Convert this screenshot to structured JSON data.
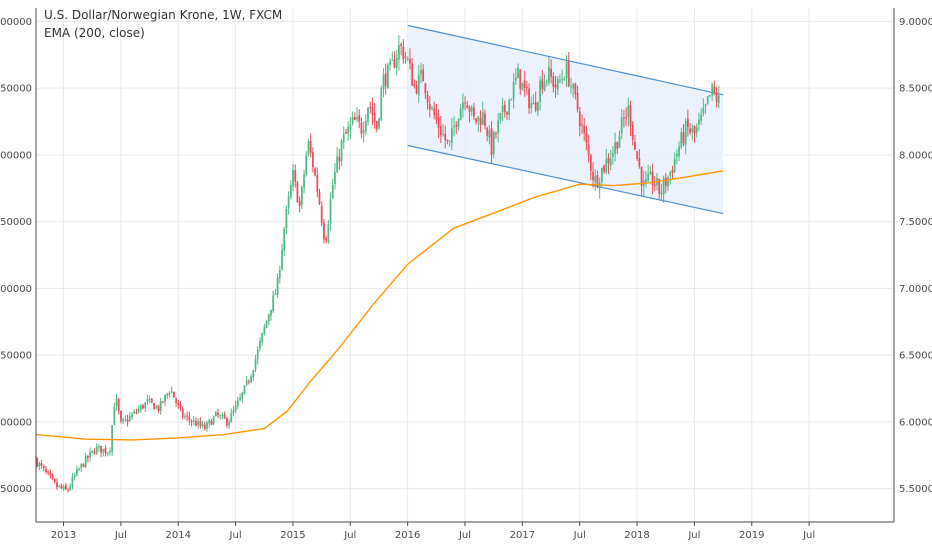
{
  "chart_data": {
    "type": "candlestick",
    "title": "U.S. Dollar/Norwegian Krone, 1W, FXCM",
    "indicator": "EMA (200, close)",
    "ylim": [
      5.25,
      9.1
    ],
    "y_ticks": [
      "9.00000",
      "8.50000",
      "8.00000",
      "7.50000",
      "7.00000",
      "6.50000",
      "6.00000",
      "5.50000"
    ],
    "y_tick_values": [
      9.0,
      8.5,
      8.0,
      7.5,
      7.0,
      6.5,
      6.0,
      5.5
    ],
    "x_ticks": [
      {
        "label": "2013",
        "t": 2013.0
      },
      {
        "label": "Jul",
        "t": 2013.5
      },
      {
        "label": "2014",
        "t": 2014.0
      },
      {
        "label": "Jul",
        "t": 2014.5
      },
      {
        "label": "2015",
        "t": 2015.0
      },
      {
        "label": "Jul",
        "t": 2015.5
      },
      {
        "label": "2016",
        "t": 2016.0
      },
      {
        "label": "Jul",
        "t": 2016.5
      },
      {
        "label": "2017",
        "t": 2017.0
      },
      {
        "label": "Jul",
        "t": 2017.5
      },
      {
        "label": "2018",
        "t": 2018.0
      },
      {
        "label": "Jul",
        "t": 2018.5
      },
      {
        "label": "2019",
        "t": 2019.0
      },
      {
        "label": "Jul",
        "t": 2019.5
      }
    ],
    "xlim": [
      2012.76,
      2020.24
    ],
    "price_path": [
      [
        2012.77,
        5.72
      ],
      [
        2012.85,
        5.63
      ],
      [
        2012.95,
        5.52
      ],
      [
        2013.05,
        5.48
      ],
      [
        2013.12,
        5.6
      ],
      [
        2013.2,
        5.7
      ],
      [
        2013.3,
        5.8
      ],
      [
        2013.42,
        5.78
      ],
      [
        2013.47,
        6.2
      ],
      [
        2013.52,
        5.98
      ],
      [
        2013.62,
        6.05
      ],
      [
        2013.75,
        6.15
      ],
      [
        2013.85,
        6.1
      ],
      [
        2013.95,
        6.25
      ],
      [
        2014.05,
        6.05
      ],
      [
        2014.15,
        6.0
      ],
      [
        2014.25,
        5.95
      ],
      [
        2014.35,
        6.05
      ],
      [
        2014.45,
        6.0
      ],
      [
        2014.55,
        6.15
      ],
      [
        2014.65,
        6.35
      ],
      [
        2014.72,
        6.55
      ],
      [
        2014.82,
        6.85
      ],
      [
        2014.88,
        7.0
      ],
      [
        2014.95,
        7.5
      ],
      [
        2015.02,
        7.85
      ],
      [
        2015.08,
        7.6
      ],
      [
        2015.15,
        8.1
      ],
      [
        2015.2,
        7.9
      ],
      [
        2015.25,
        7.65
      ],
      [
        2015.3,
        7.35
      ],
      [
        2015.37,
        7.8
      ],
      [
        2015.45,
        8.1
      ],
      [
        2015.55,
        8.25
      ],
      [
        2015.62,
        8.2
      ],
      [
        2015.68,
        8.4
      ],
      [
        2015.75,
        8.2
      ],
      [
        2015.8,
        8.55
      ],
      [
        2015.88,
        8.65
      ],
      [
        2015.95,
        8.82
      ],
      [
        2016.02,
        8.7
      ],
      [
        2016.08,
        8.5
      ],
      [
        2016.15,
        8.6
      ],
      [
        2016.22,
        8.35
      ],
      [
        2016.3,
        8.2
      ],
      [
        2016.38,
        8.05
      ],
      [
        2016.45,
        8.3
      ],
      [
        2016.52,
        8.45
      ],
      [
        2016.6,
        8.25
      ],
      [
        2016.68,
        8.3
      ],
      [
        2016.75,
        8.05
      ],
      [
        2016.82,
        8.25
      ],
      [
        2016.9,
        8.4
      ],
      [
        2016.98,
        8.6
      ],
      [
        2017.05,
        8.45
      ],
      [
        2017.12,
        8.35
      ],
      [
        2017.18,
        8.55
      ],
      [
        2017.25,
        8.6
      ],
      [
        2017.32,
        8.5
      ],
      [
        2017.4,
        8.65
      ],
      [
        2017.5,
        8.35
      ],
      [
        2017.58,
        8.05
      ],
      [
        2017.65,
        7.8
      ],
      [
        2017.72,
        7.9
      ],
      [
        2017.82,
        8.05
      ],
      [
        2017.9,
        8.25
      ],
      [
        2017.95,
        8.35
      ],
      [
        2018.0,
        8.05
      ],
      [
        2018.08,
        7.75
      ],
      [
        2018.15,
        7.82
      ],
      [
        2018.22,
        7.72
      ],
      [
        2018.3,
        7.85
      ],
      [
        2018.38,
        8.05
      ],
      [
        2018.45,
        8.2
      ],
      [
        2018.52,
        8.15
      ],
      [
        2018.6,
        8.3
      ],
      [
        2018.67,
        8.48
      ],
      [
        2018.73,
        8.4
      ]
    ],
    "ema_path": [
      [
        2012.76,
        5.905
      ],
      [
        2013.2,
        5.87
      ],
      [
        2013.6,
        5.865
      ],
      [
        2014.0,
        5.88
      ],
      [
        2014.4,
        5.905
      ],
      [
        2014.75,
        5.95
      ],
      [
        2014.95,
        6.08
      ],
      [
        2015.15,
        6.3
      ],
      [
        2015.4,
        6.55
      ],
      [
        2015.7,
        6.88
      ],
      [
        2016.0,
        7.18
      ],
      [
        2016.4,
        7.45
      ],
      [
        2016.8,
        7.58
      ],
      [
        2017.1,
        7.68
      ],
      [
        2017.5,
        7.78
      ],
      [
        2017.8,
        7.77
      ],
      [
        2018.1,
        7.79
      ],
      [
        2018.4,
        7.83
      ],
      [
        2018.75,
        7.88
      ]
    ],
    "channel": {
      "upper": [
        [
          2016.0,
          8.97
        ],
        [
          2018.75,
          8.45
        ]
      ],
      "lower": [
        [
          2016.0,
          8.07
        ],
        [
          2018.75,
          7.56
        ]
      ]
    },
    "colors": {
      "up": "#53b987",
      "down": "#eb4d5c",
      "ema": "#ff9800",
      "channel_line": "#4a90d9",
      "channel_fill": "#e8f0fc",
      "grid": "#e6e9ee",
      "axis": "#4a4a4a"
    }
  }
}
